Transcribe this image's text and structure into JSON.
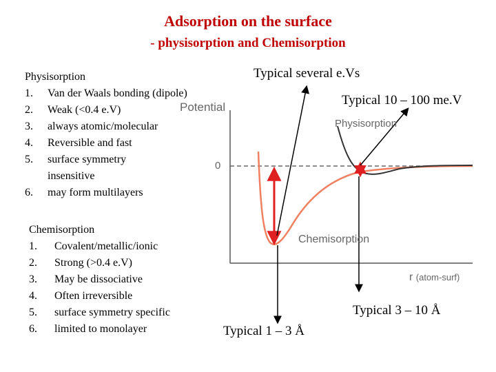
{
  "title": "Adsorption on the surface",
  "subtitle": "- physisorption and Chemisorption",
  "physisorption": {
    "heading": "Physisorption",
    "items": [
      {
        "num": "1.",
        "text": "Van der Waals bonding (dipole)"
      },
      {
        "num": "2.",
        "text": "Weak (<0.4 e.V)"
      },
      {
        "num": "3.",
        "text": "always atomic/molecular"
      },
      {
        "num": "4.",
        "text": "Reversible and fast"
      },
      {
        "num": "5.",
        "text": "surface symmetry insensitive"
      },
      {
        "num": "6.",
        "text": "may form multilayers"
      }
    ]
  },
  "chemisorption": {
    "heading": "Chemisorption",
    "items": [
      {
        "num": "1.",
        "text": "Covalent/metallic/ionic"
      },
      {
        "num": "2.",
        "text": "Strong (>0.4 e.V)"
      },
      {
        "num": "3.",
        "text": "May be dissociative"
      },
      {
        "num": "4.",
        "text": "Often irreversible"
      },
      {
        "num": "5.",
        "text": "surface symmetry specific"
      },
      {
        "num": "6.",
        "text": "limited to monolayer"
      }
    ]
  },
  "plot": {
    "y_label": "Potential",
    "zero_label": "0",
    "physi_label": "Physisorption",
    "chemi_label": "Chemisorption",
    "x_label_r": "r",
    "x_label_sub": "(atom-surf)"
  },
  "notes": {
    "several_ev": "Typical several e.Vs",
    "mev": "Typical 10 – 100 me.V",
    "ang_3_10": "Typical 3 – 10 Å",
    "ang_1_3": "Typical 1 – 3 Å"
  },
  "colors": {
    "title": "#c00000",
    "chemi_curve": "#f08060",
    "physi_curve": "#333333",
    "arrow": "#e02020",
    "axis": "#555555"
  }
}
